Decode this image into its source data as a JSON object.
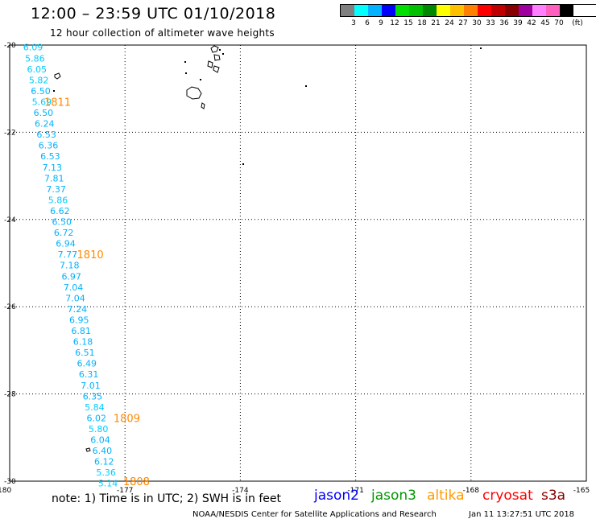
{
  "header": {
    "title": "12:00 – 23:59 UTC 01/10/2018",
    "subtitle": "12 hour collection of altimeter wave heights"
  },
  "legend": {
    "colors": [
      "#808080",
      "#00ffff",
      "#00b2ff",
      "#0000ff",
      "#00e000",
      "#00c000",
      "#008800",
      "#ffff00",
      "#ffc000",
      "#ff8000",
      "#ff0000",
      "#c00000",
      "#880000",
      "#a000a0",
      "#ff80ff",
      "#ff60c0",
      "#000000"
    ],
    "labels": [
      "3",
      "6",
      "9",
      "12",
      "15",
      "18",
      "21",
      "24",
      "27",
      "30",
      "33",
      "36",
      "39",
      "42",
      "45",
      "70",
      "(ft)"
    ]
  },
  "chart_data": {
    "type": "scatter",
    "x_ticks": [
      "-180",
      "-177",
      "-174",
      "-171",
      "-168",
      "-165"
    ],
    "y_ticks": [
      "-20",
      "-22",
      "-24",
      "-26",
      "-28",
      "-30"
    ],
    "xlim": [
      -180,
      -165
    ],
    "ylim": [
      -30,
      -20
    ],
    "grid": true,
    "measurements": [
      {
        "lon": -179.65,
        "lat": -20.05,
        "value": "6.09",
        "color": "#00ccff"
      },
      {
        "lon": -179.6,
        "lat": -20.3,
        "value": "5.86",
        "color": "#00ccff"
      },
      {
        "lon": -179.55,
        "lat": -20.55,
        "value": "6.05",
        "color": "#00ccff"
      },
      {
        "lon": -179.5,
        "lat": -20.8,
        "value": "5.82",
        "color": "#00ccff"
      },
      {
        "lon": -179.45,
        "lat": -21.05,
        "value": "6.50",
        "color": "#00b2ff"
      },
      {
        "lon": -179.42,
        "lat": -21.3,
        "value": "5.69",
        "color": "#00ccff"
      },
      {
        "lon": -179.38,
        "lat": -21.55,
        "value": "6.50",
        "color": "#00b2ff"
      },
      {
        "lon": -179.35,
        "lat": -21.8,
        "value": "6.24",
        "color": "#00b2ff"
      },
      {
        "lon": -179.3,
        "lat": -22.05,
        "value": "6.53",
        "color": "#00b2ff"
      },
      {
        "lon": -179.25,
        "lat": -22.3,
        "value": "6.36",
        "color": "#00b2ff"
      },
      {
        "lon": -179.2,
        "lat": -22.55,
        "value": "6.53",
        "color": "#00b2ff"
      },
      {
        "lon": -179.15,
        "lat": -22.8,
        "value": "7.13",
        "color": "#00b2ff"
      },
      {
        "lon": -179.1,
        "lat": -23.05,
        "value": "7.81",
        "color": "#00b2ff"
      },
      {
        "lon": -179.05,
        "lat": -23.3,
        "value": "7.37",
        "color": "#00b2ff"
      },
      {
        "lon": -179.0,
        "lat": -23.55,
        "value": "5.86",
        "color": "#00ccff"
      },
      {
        "lon": -178.95,
        "lat": -23.8,
        "value": "6.62",
        "color": "#00b2ff"
      },
      {
        "lon": -178.9,
        "lat": -24.05,
        "value": "6.50",
        "color": "#00b2ff"
      },
      {
        "lon": -178.85,
        "lat": -24.3,
        "value": "6.72",
        "color": "#00b2ff"
      },
      {
        "lon": -178.8,
        "lat": -24.55,
        "value": "6.94",
        "color": "#00b2ff"
      },
      {
        "lon": -178.75,
        "lat": -24.8,
        "value": "7.77",
        "color": "#00b2ff"
      },
      {
        "lon": -178.7,
        "lat": -25.05,
        "value": "7.18",
        "color": "#00b2ff"
      },
      {
        "lon": -178.65,
        "lat": -25.3,
        "value": "6.97",
        "color": "#00b2ff"
      },
      {
        "lon": -178.6,
        "lat": -25.55,
        "value": "7.04",
        "color": "#00b2ff"
      },
      {
        "lon": -178.55,
        "lat": -25.8,
        "value": "7.04",
        "color": "#00b2ff"
      },
      {
        "lon": -178.5,
        "lat": -26.05,
        "value": "7.24",
        "color": "#00b2ff"
      },
      {
        "lon": -178.45,
        "lat": -26.3,
        "value": "6.95",
        "color": "#00b2ff"
      },
      {
        "lon": -178.4,
        "lat": -26.55,
        "value": "6.81",
        "color": "#00b2ff"
      },
      {
        "lon": -178.35,
        "lat": -26.8,
        "value": "6.18",
        "color": "#00b2ff"
      },
      {
        "lon": -178.3,
        "lat": -27.05,
        "value": "6.51",
        "color": "#00b2ff"
      },
      {
        "lon": -178.25,
        "lat": -27.3,
        "value": "6.49",
        "color": "#00b2ff"
      },
      {
        "lon": -178.2,
        "lat": -27.55,
        "value": "6.31",
        "color": "#00b2ff"
      },
      {
        "lon": -178.15,
        "lat": -27.8,
        "value": "7.01",
        "color": "#00b2ff"
      },
      {
        "lon": -178.1,
        "lat": -28.05,
        "value": "6.35",
        "color": "#00b2ff"
      },
      {
        "lon": -178.05,
        "lat": -28.3,
        "value": "5.84",
        "color": "#00ccff"
      },
      {
        "lon": -178.0,
        "lat": -28.55,
        "value": "6.02",
        "color": "#00b2ff"
      },
      {
        "lon": -177.95,
        "lat": -28.8,
        "value": "5.80",
        "color": "#00ccff"
      },
      {
        "lon": -177.9,
        "lat": -29.05,
        "value": "6.04",
        "color": "#00b2ff"
      },
      {
        "lon": -177.85,
        "lat": -29.3,
        "value": "6.40",
        "color": "#00b2ff"
      },
      {
        "lon": -177.8,
        "lat": -29.55,
        "value": "6.12",
        "color": "#00b2ff"
      },
      {
        "lon": -177.75,
        "lat": -29.8,
        "value": "5.36",
        "color": "#00ccff"
      },
      {
        "lon": -177.7,
        "lat": -30.05,
        "value": "5.14",
        "color": "#00ccff"
      }
    ],
    "pass_labels": [
      {
        "lon": -179.1,
        "lat": -21.3,
        "text": "1811"
      },
      {
        "lon": -178.25,
        "lat": -24.8,
        "text": "1810"
      },
      {
        "lon": -177.3,
        "lat": -28.55,
        "text": "1809"
      },
      {
        "lon": -177.05,
        "lat": -30.0,
        "text": "1808"
      }
    ]
  },
  "footer": {
    "note": "note: 1) Time is in UTC; 2) SWH is in feet",
    "missions": [
      {
        "name": "jason2",
        "color": "#0000ff"
      },
      {
        "name": "jason3",
        "color": "#009900"
      },
      {
        "name": "altika",
        "color": "#ff9900"
      },
      {
        "name": "cryosat",
        "color": "#ff0000"
      },
      {
        "name": "s3a",
        "color": "#880000"
      }
    ],
    "credit": "NOAA/NESDIS Center for Satellite Applications and Research",
    "timestamp": "Jan 11 13:27:51 UTC 2018"
  },
  "colors": {
    "pass_label": "#ff8800",
    "grid": "#000000"
  }
}
